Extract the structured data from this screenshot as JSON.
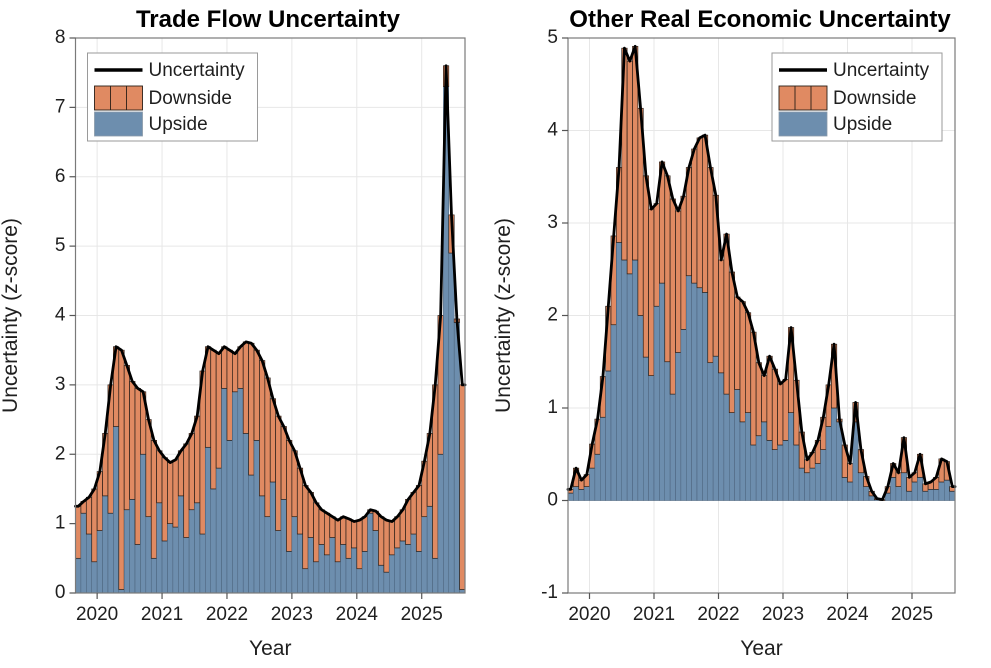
{
  "figure": {
    "background": "#ffffff",
    "colors": {
      "downside_fill": "#E08A62",
      "downside_edge": "#2B1F18",
      "upside_fill": "#6D8EAE",
      "upside_edge": "#49617A",
      "line": "#000000",
      "grid": "#E7E7E7",
      "axis_box": "#7A7A7A",
      "tick": "#555555",
      "text": "#1F1F1F"
    }
  },
  "months": [
    "2019-09",
    "2019-10",
    "2019-11",
    "2019-12",
    "2020-01",
    "2020-02",
    "2020-03",
    "2020-04",
    "2020-05",
    "2020-06",
    "2020-07",
    "2020-08",
    "2020-09",
    "2020-10",
    "2020-11",
    "2020-12",
    "2021-01",
    "2021-02",
    "2021-03",
    "2021-04",
    "2021-05",
    "2021-06",
    "2021-07",
    "2021-08",
    "2021-09",
    "2021-10",
    "2021-11",
    "2021-12",
    "2022-01",
    "2022-02",
    "2022-03",
    "2022-04",
    "2022-05",
    "2022-06",
    "2022-07",
    "2022-08",
    "2022-09",
    "2022-10",
    "2022-11",
    "2022-12",
    "2023-01",
    "2023-02",
    "2023-03",
    "2023-04",
    "2023-05",
    "2023-06",
    "2023-07",
    "2023-08",
    "2023-09",
    "2023-10",
    "2023-11",
    "2023-12",
    "2024-01",
    "2024-02",
    "2024-03",
    "2024-04",
    "2024-05",
    "2024-06",
    "2024-07",
    "2024-08",
    "2024-09",
    "2024-10",
    "2024-11",
    "2024-12",
    "2025-01",
    "2025-02",
    "2025-03",
    "2025-04",
    "2025-05",
    "2025-06",
    "2025-07",
    "2025-08"
  ],
  "chart_data": [
    {
      "type": "bar",
      "subtype": "stacked-bars-with-line",
      "panel": "left",
      "title": "Trade Flow Uncertainty",
      "xlabel": "Year",
      "ylabel": "Uncertainty (z-score)",
      "ylim": [
        0,
        8
      ],
      "yticks": [
        0,
        1,
        2,
        3,
        4,
        5,
        6,
        7,
        8
      ],
      "xtick_labels": [
        "2020",
        "2021",
        "2022",
        "2023",
        "2024",
        "2025"
      ],
      "xtick_month_index": [
        4,
        16,
        28,
        40,
        52,
        64
      ],
      "grid": true,
      "legend": {
        "position": "top-left",
        "entries": [
          "Uncertainty",
          "Downside",
          "Upside"
        ]
      },
      "series": [
        {
          "name": "Uncertainty",
          "render": "line",
          "values": [
            1.25,
            1.32,
            1.38,
            1.5,
            1.75,
            2.3,
            3.0,
            3.55,
            3.5,
            3.28,
            3.05,
            2.95,
            2.9,
            2.5,
            2.2,
            2.05,
            1.95,
            1.88,
            1.92,
            2.05,
            2.15,
            2.3,
            2.55,
            3.2,
            3.55,
            3.5,
            3.45,
            3.55,
            3.5,
            3.45,
            3.55,
            3.62,
            3.6,
            3.5,
            3.35,
            3.1,
            2.8,
            2.55,
            2.4,
            2.2,
            2.05,
            1.8,
            1.55,
            1.45,
            1.3,
            1.2,
            1.15,
            1.1,
            1.05,
            1.1,
            1.07,
            1.03,
            1.05,
            1.1,
            1.2,
            1.18,
            1.1,
            1.05,
            1.03,
            1.1,
            1.2,
            1.35,
            1.45,
            1.55,
            1.9,
            2.3,
            3.0,
            4.0,
            7.6,
            5.45,
            3.95,
            3.0
          ]
        },
        {
          "name": "Downside",
          "render": "bar-top",
          "values": [
            0.75,
            0.17,
            0.53,
            1.05,
            0.85,
            0.9,
            1.85,
            1.15,
            3.45,
            2.08,
            1.7,
            2.25,
            0.9,
            1.4,
            1.7,
            0.75,
            1.2,
            0.88,
            0.97,
            0.65,
            1.35,
            1.1,
            1.25,
            2.35,
            1.45,
            2.0,
            1.65,
            0.6,
            1.3,
            0.55,
            0.6,
            1.32,
            1.9,
            1.3,
            1.95,
            2.0,
            1.2,
            1.65,
            1.05,
            1.6,
            0.95,
            0.95,
            1.2,
            0.65,
            0.85,
            0.5,
            0.6,
            0.3,
            0.6,
            0.4,
            0.57,
            0.38,
            0.7,
            0.5,
            0.05,
            0.28,
            0.7,
            0.75,
            0.48,
            0.45,
            0.45,
            0.65,
            0.6,
            0.95,
            0.8,
            1.05,
            2.5,
            2.0,
            0.3,
            0.55,
            0.05,
            2.95
          ]
        },
        {
          "name": "Upside",
          "render": "bar-bottom",
          "values": [
            0.5,
            1.15,
            0.85,
            0.45,
            0.9,
            1.4,
            1.15,
            2.4,
            0.05,
            1.2,
            1.35,
            0.7,
            2.0,
            1.1,
            0.5,
            1.3,
            0.75,
            1.0,
            0.95,
            1.4,
            0.8,
            1.2,
            1.3,
            0.85,
            2.1,
            1.5,
            1.8,
            2.95,
            2.2,
            2.9,
            2.95,
            2.3,
            1.7,
            2.2,
            1.4,
            1.1,
            1.6,
            0.9,
            1.35,
            0.6,
            1.1,
            0.85,
            0.35,
            0.8,
            0.45,
            0.7,
            0.55,
            0.8,
            0.45,
            0.7,
            0.5,
            0.65,
            0.35,
            0.6,
            1.15,
            0.9,
            0.4,
            0.3,
            0.55,
            0.65,
            0.75,
            0.7,
            0.85,
            0.6,
            1.1,
            1.25,
            0.5,
            2.0,
            7.3,
            4.9,
            3.9,
            0.05
          ]
        }
      ]
    },
    {
      "type": "bar",
      "subtype": "stacked-bars-with-line",
      "panel": "right",
      "title": "Other Real Economic Uncertainty",
      "xlabel": "Year",
      "ylabel": "Uncertainty (z-score)",
      "ylim": [
        -1,
        5
      ],
      "yticks": [
        -1,
        0,
        1,
        2,
        3,
        4,
        5
      ],
      "xtick_labels": [
        "2020",
        "2021",
        "2022",
        "2023",
        "2024",
        "2025"
      ],
      "xtick_month_index": [
        4,
        16,
        28,
        40,
        52,
        64
      ],
      "grid": true,
      "legend": {
        "position": "top-right",
        "entries": [
          "Uncertainty",
          "Downside",
          "Upside"
        ]
      },
      "series": [
        {
          "name": "Uncertainty",
          "render": "line",
          "values": [
            0.12,
            0.35,
            0.22,
            0.28,
            0.61,
            0.88,
            1.34,
            2.1,
            2.86,
            3.6,
            4.89,
            4.75,
            4.91,
            4.24,
            3.51,
            3.15,
            3.21,
            3.66,
            3.51,
            3.26,
            3.13,
            3.29,
            3.6,
            3.8,
            3.92,
            3.95,
            3.6,
            3.3,
            2.6,
            2.88,
            2.47,
            2.2,
            2.15,
            2.03,
            1.82,
            1.49,
            1.35,
            1.56,
            1.42,
            1.26,
            1.31,
            1.87,
            1.3,
            0.74,
            0.44,
            0.52,
            0.65,
            0.9,
            1.25,
            1.69,
            0.88,
            0.6,
            0.4,
            1.06,
            0.55,
            0.26,
            0.1,
            0.02,
            0.01,
            0.15,
            0.4,
            0.3,
            0.68,
            0.25,
            0.3,
            0.5,
            0.18,
            0.2,
            0.25,
            0.45,
            0.42,
            0.15
          ]
        },
        {
          "name": "Downside",
          "render": "bar-top",
          "values": [
            0.04,
            0.2,
            0.1,
            0.13,
            0.26,
            0.38,
            0.44,
            0.7,
            0.96,
            0.81,
            2.29,
            2.3,
            2.31,
            2.24,
            1.96,
            1.8,
            1.11,
            1.31,
            2.01,
            2.11,
            1.53,
            1.44,
            1.17,
            1.45,
            1.62,
            1.7,
            2.11,
            1.74,
            1.22,
            1.73,
            1.52,
            1.0,
            1.3,
            1.08,
            1.22,
            0.79,
            0.5,
            0.91,
            0.87,
            0.66,
            0.66,
            0.92,
            0.7,
            0.39,
            0.14,
            0.17,
            0.25,
            0.35,
            0.45,
            0.69,
            0.03,
            0.35,
            0.2,
            0.21,
            0.25,
            0.11,
            0.05,
            0.01,
            0.01,
            0.07,
            0.15,
            0.15,
            0.38,
            0.15,
            0.1,
            0.25,
            0.08,
            0.08,
            0.13,
            0.25,
            0.2,
            0.05
          ]
        },
        {
          "name": "Upside",
          "render": "bar-bottom",
          "values": [
            0.08,
            0.15,
            0.12,
            0.15,
            0.35,
            0.5,
            0.9,
            1.4,
            1.9,
            2.79,
            2.6,
            2.45,
            2.6,
            2.0,
            1.55,
            1.35,
            2.1,
            2.35,
            1.5,
            1.15,
            1.6,
            1.85,
            2.43,
            2.35,
            2.3,
            2.25,
            1.49,
            1.56,
            1.38,
            1.15,
            0.95,
            1.2,
            0.85,
            0.95,
            0.6,
            0.7,
            0.85,
            0.65,
            0.55,
            0.6,
            0.65,
            0.95,
            0.6,
            0.35,
            0.3,
            0.35,
            0.4,
            0.55,
            0.8,
            1.0,
            0.85,
            0.25,
            0.2,
            0.85,
            0.3,
            0.15,
            0.05,
            0.01,
            0.0,
            0.08,
            0.25,
            0.15,
            0.3,
            0.1,
            0.2,
            0.25,
            0.1,
            0.12,
            0.12,
            0.2,
            0.22,
            0.1
          ]
        }
      ]
    }
  ]
}
